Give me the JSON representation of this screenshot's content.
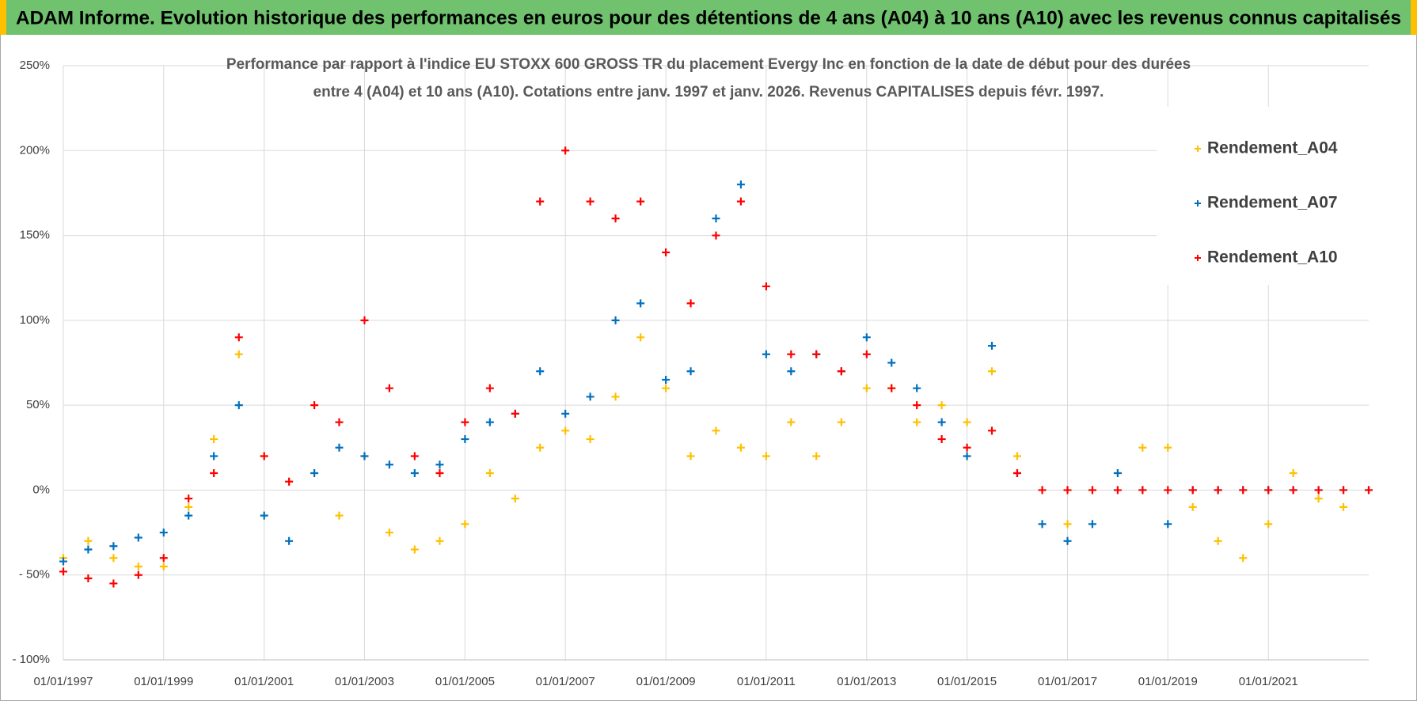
{
  "chart_data": {
    "type": "scatter",
    "title": "ADAM Informe. Evolution historique des performances en euros pour des détentions de 4 ans (A04) à 10 ans (A10) avec les revenus connus capitalisés",
    "subtitle": [
      "Performance par rapport à l'indice EU STOXX 600 GROSS TR  du placement Evergy Inc en fonction de la date de début pour des durées",
      "entre 4 (A04) et 10 ans (A10).  Cotations entre janv. 1997 et janv. 2026. Revenus CAPITALISES depuis févr. 1997."
    ],
    "x": [
      "01/01/1997",
      "01/07/1997",
      "01/01/1998",
      "01/07/1998",
      "01/01/1999",
      "01/07/1999",
      "01/01/2000",
      "01/07/2000",
      "01/01/2001",
      "01/07/2001",
      "01/01/2002",
      "01/07/2002",
      "01/01/2003",
      "01/07/2003",
      "01/01/2004",
      "01/07/2004",
      "01/01/2005",
      "01/07/2005",
      "01/01/2006",
      "01/07/2006",
      "01/01/2007",
      "01/07/2007",
      "01/01/2008",
      "01/07/2008",
      "01/01/2009",
      "01/07/2009",
      "01/01/2010",
      "01/07/2010",
      "01/01/2011",
      "01/07/2011",
      "01/01/2012",
      "01/07/2012",
      "01/01/2013",
      "01/07/2013",
      "01/01/2014",
      "01/07/2014",
      "01/01/2015",
      "01/07/2015",
      "01/01/2016",
      "01/07/2016",
      "01/01/2017",
      "01/07/2017",
      "01/01/2018",
      "01/07/2018",
      "01/01/2019",
      "01/07/2019",
      "01/01/2020",
      "01/07/2020",
      "01/01/2021",
      "01/07/2021",
      "01/01/2022",
      "01/07/2022",
      "01/01/2023"
    ],
    "series": [
      {
        "name": "Rendement_A04",
        "color": "#ffc000",
        "values": [
          -40,
          -30,
          -40,
          -45,
          -45,
          -10,
          30,
          80,
          20,
          5,
          10,
          -15,
          20,
          -25,
          -35,
          -30,
          -20,
          10,
          -5,
          25,
          35,
          30,
          55,
          90,
          60,
          20,
          35,
          25,
          20,
          40,
          20,
          40,
          60,
          60,
          40,
          50,
          40,
          70,
          20,
          0,
          -20,
          0,
          10,
          25,
          25,
          -10,
          -30,
          -40,
          -20,
          10,
          -5,
          -10,
          null
        ]
      },
      {
        "name": "Rendement_A07",
        "color": "#0070c0",
        "values": [
          -42,
          -35,
          -33,
          -28,
          -25,
          -15,
          20,
          50,
          -15,
          -30,
          10,
          25,
          20,
          15,
          10,
          15,
          30,
          40,
          45,
          70,
          45,
          55,
          100,
          110,
          65,
          70,
          160,
          180,
          80,
          70,
          80,
          70,
          90,
          75,
          60,
          40,
          20,
          85,
          10,
          -20,
          -30,
          -20,
          10,
          0,
          -20,
          0,
          0,
          0,
          0,
          0,
          0,
          0,
          0
        ]
      },
      {
        "name": "Rendement_A10",
        "color": "#ff0000",
        "values": [
          -48,
          -52,
          -55,
          -50,
          -40,
          -5,
          10,
          90,
          20,
          5,
          50,
          40,
          100,
          60,
          20,
          10,
          40,
          60,
          45,
          170,
          200,
          170,
          160,
          170,
          140,
          110,
          150,
          170,
          120,
          80,
          80,
          70,
          80,
          60,
          50,
          30,
          25,
          35,
          10,
          0,
          0,
          0,
          0,
          0,
          0,
          0,
          0,
          0,
          0,
          0,
          0,
          0,
          0
        ]
      }
    ],
    "xlim": [
      "01/01/1997",
      "01/01/2023"
    ],
    "xticks": [
      "01/01/1997",
      "01/01/1999",
      "01/01/2001",
      "01/01/2003",
      "01/01/2005",
      "01/01/2007",
      "01/01/2009",
      "01/01/2011",
      "01/01/2013",
      "01/01/2015",
      "01/01/2017",
      "01/01/2019",
      "01/01/2021"
    ],
    "ylim": [
      -100,
      250
    ],
    "yticks": [
      {
        "value": -100,
        "label": "- 100%"
      },
      {
        "value": -50,
        "label": "- 50%"
      },
      {
        "value": 0,
        "label": "0%"
      },
      {
        "value": 50,
        "label": "50%"
      },
      {
        "value": 100,
        "label": "100%"
      },
      {
        "value": 150,
        "label": "150%"
      },
      {
        "value": 200,
        "label": "200%"
      },
      {
        "value": 250,
        "label": "250%"
      }
    ],
    "grid": true,
    "legend": "upper right"
  }
}
